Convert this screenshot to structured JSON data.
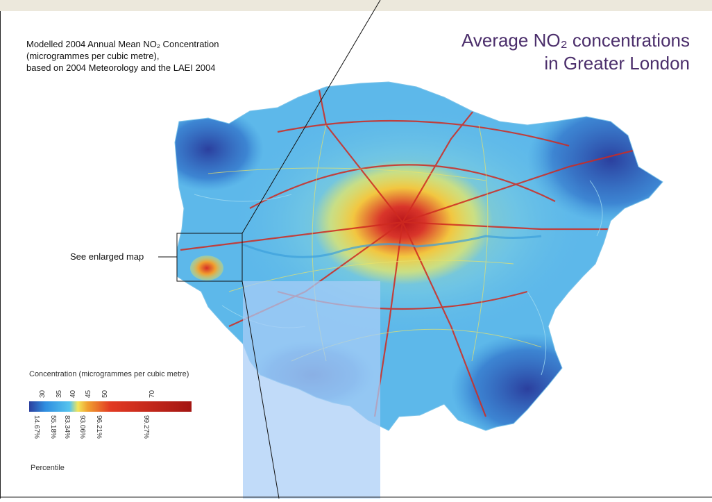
{
  "caption": {
    "line1": "Modelled 2004 Annual Mean NO₂ Concentration",
    "line2": "(microgrammes per cubic metre),",
    "line3": "based on 2004 Meteorology and the LAEI 2004"
  },
  "title": {
    "line1": "Average NO₂ concentrations",
    "line2": "in Greater London"
  },
  "callout": {
    "label": "See enlarged map"
  },
  "legend": {
    "title": "Concentration (microgrammes per cubic metre)",
    "ticks": [
      "30",
      "35",
      "40",
      "45",
      "50",
      "70"
    ],
    "percentiles": [
      "14.67%",
      "55.18%",
      "83.34%",
      "93.06%",
      "96.21%",
      "99.27%"
    ],
    "percentile_label": "Percentile",
    "colors": [
      "#2b3f9e",
      "#2f8ee0",
      "#56c4ee",
      "#f2e65a",
      "#f0a030",
      "#e23a23",
      "#a31512"
    ]
  },
  "colors": {
    "title": "#4b2e6b",
    "low": "#2b3f9e",
    "mid": "#5db8ea",
    "high": "#c8201c"
  }
}
